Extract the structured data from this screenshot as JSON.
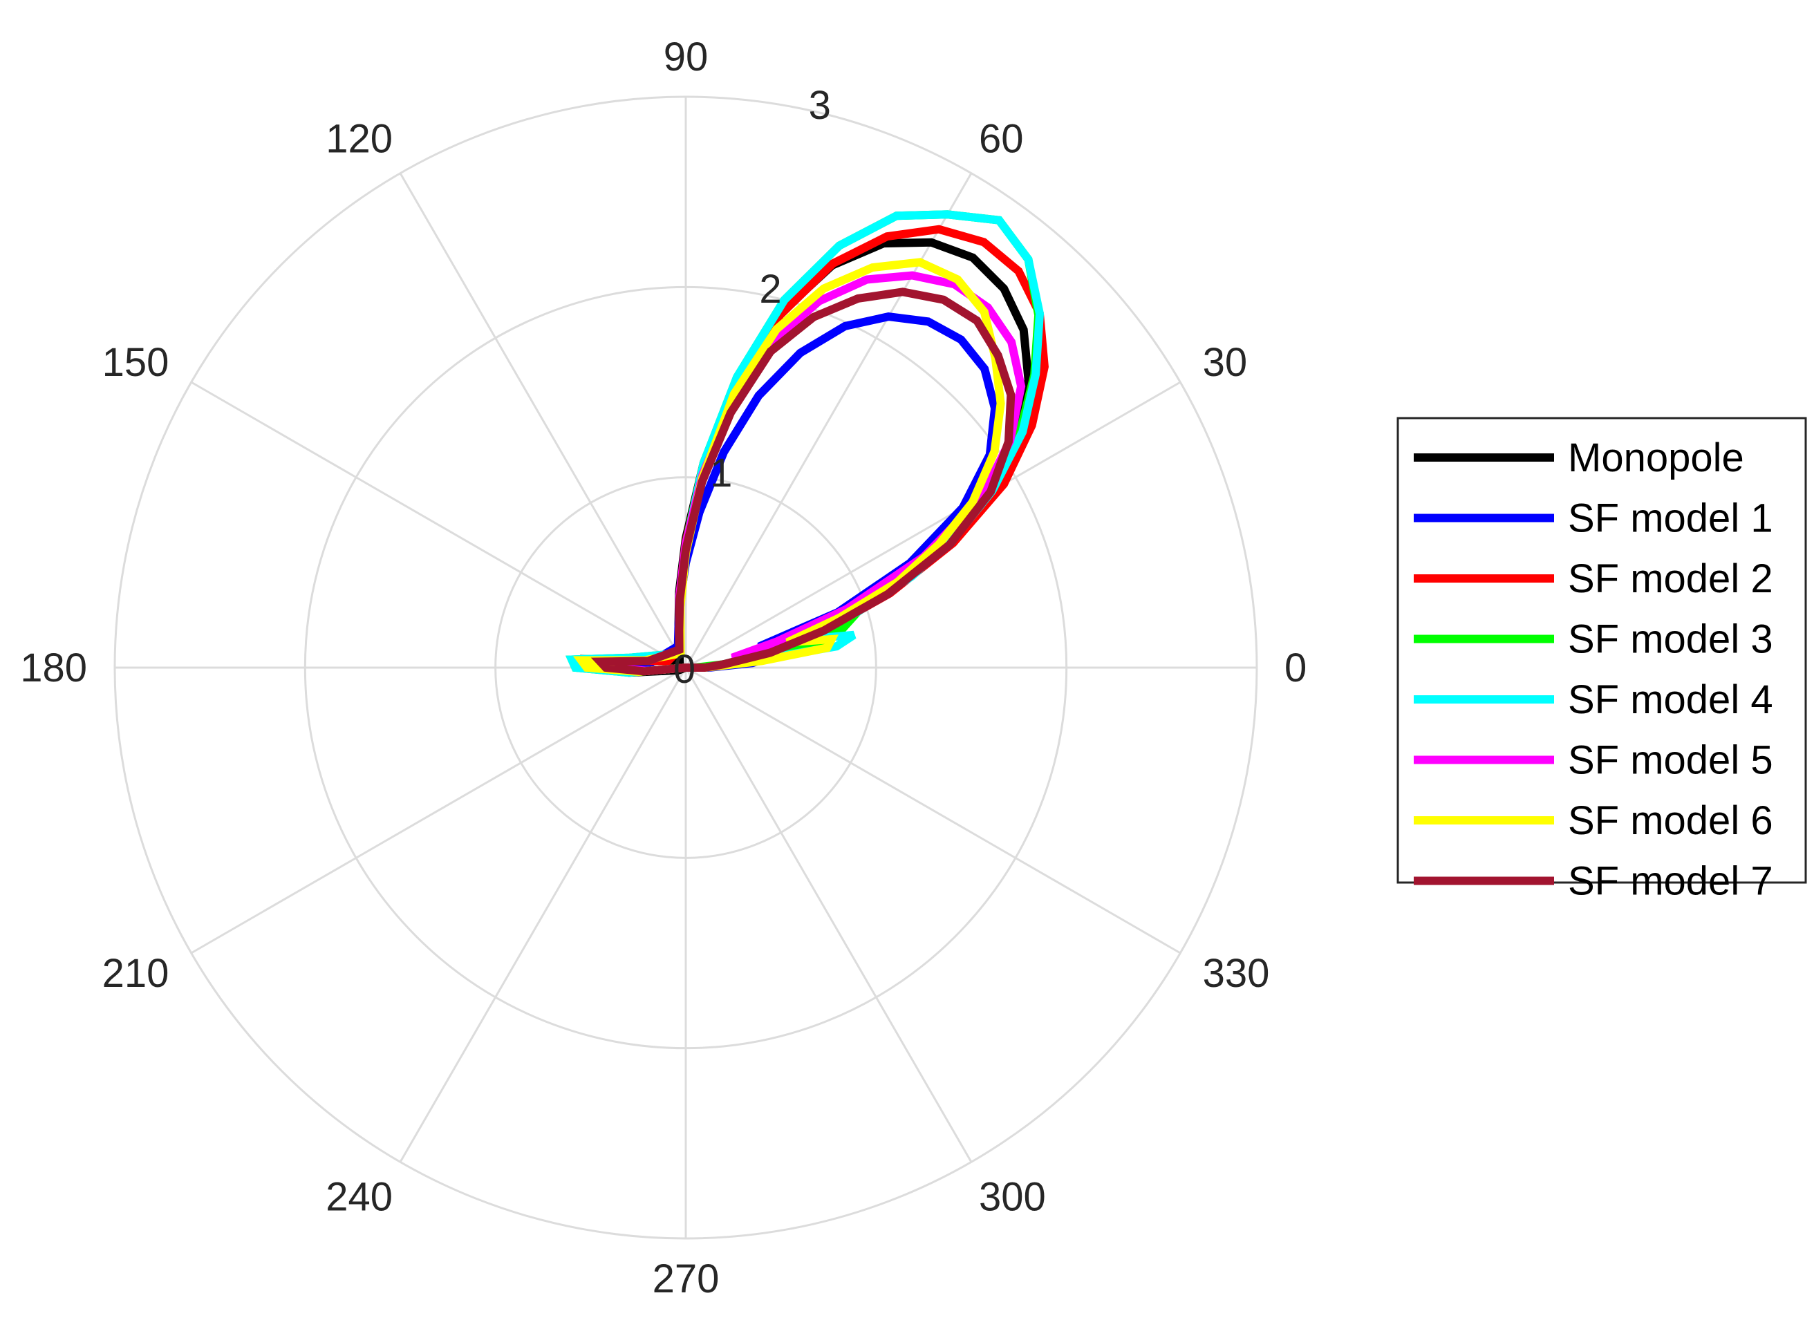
{
  "chart_data": {
    "type": "polar",
    "title": "",
    "theta_unit": "degrees",
    "theta_ticks": [
      0,
      30,
      60,
      90,
      120,
      150,
      180,
      210,
      240,
      270,
      300,
      330
    ],
    "r_ticks": [
      0,
      1,
      2,
      3
    ],
    "rlim": [
      0,
      3
    ],
    "grid": true,
    "legend_position": "right",
    "series": [
      {
        "name": "Monopole",
        "color": "#000000",
        "points": [
          [
            0,
            0.1
          ],
          [
            5,
            0.2
          ],
          [
            10,
            0.42
          ],
          [
            15,
            0.72
          ],
          [
            20,
            1.1
          ],
          [
            25,
            1.5
          ],
          [
            30,
            1.86
          ],
          [
            35,
            2.13
          ],
          [
            40,
            2.35
          ],
          [
            45,
            2.51
          ],
          [
            50,
            2.6
          ],
          [
            55,
            2.63
          ],
          [
            60,
            2.58
          ],
          [
            65,
            2.46
          ],
          [
            70,
            2.25
          ],
          [
            75,
            1.93
          ],
          [
            80,
            1.52
          ],
          [
            85,
            1.08
          ],
          [
            90,
            0.68
          ],
          [
            95,
            0.4
          ],
          [
            100,
            0.22
          ],
          [
            110,
            0.1
          ],
          [
            130,
            0.05
          ],
          [
            160,
            0.1
          ],
          [
            175,
            0.5
          ],
          [
            180,
            0.45
          ],
          [
            185,
            0.3
          ],
          [
            200,
            0.04
          ],
          [
            360,
            0.0
          ]
        ]
      },
      {
        "name": "SF model 1",
        "color": "#0000ff",
        "points": [
          [
            0,
            0.12
          ],
          [
            4,
            0.35
          ],
          [
            8,
            0.48
          ],
          [
            12,
            0.55
          ],
          [
            16,
            0.4
          ],
          [
            20,
            0.85
          ],
          [
            25,
            1.3
          ],
          [
            30,
            1.68
          ],
          [
            35,
            1.95
          ],
          [
            40,
            2.12
          ],
          [
            45,
            2.22
          ],
          [
            50,
            2.25
          ],
          [
            55,
            2.22
          ],
          [
            60,
            2.13
          ],
          [
            65,
            1.98
          ],
          [
            70,
            1.76
          ],
          [
            75,
            1.48
          ],
          [
            80,
            1.15
          ],
          [
            85,
            0.82
          ],
          [
            90,
            0.55
          ],
          [
            95,
            0.35
          ],
          [
            100,
            0.22
          ],
          [
            110,
            0.12
          ],
          [
            170,
            0.18
          ],
          [
            176,
            0.4
          ],
          [
            180,
            0.3
          ],
          [
            185,
            0.15
          ],
          [
            360,
            0.0
          ]
        ]
      },
      {
        "name": "SF model 2",
        "color": "#ff0000",
        "points": [
          [
            0,
            0.1
          ],
          [
            5,
            0.22
          ],
          [
            10,
            0.45
          ],
          [
            15,
            0.75
          ],
          [
            20,
            1.14
          ],
          [
            25,
            1.55
          ],
          [
            30,
            1.93
          ],
          [
            35,
            2.22
          ],
          [
            40,
            2.46
          ],
          [
            45,
            2.63
          ],
          [
            50,
            2.72
          ],
          [
            55,
            2.73
          ],
          [
            60,
            2.66
          ],
          [
            65,
            2.5
          ],
          [
            70,
            2.26
          ],
          [
            75,
            1.92
          ],
          [
            80,
            1.5
          ],
          [
            85,
            1.06
          ],
          [
            90,
            0.66
          ],
          [
            95,
            0.38
          ],
          [
            100,
            0.2
          ],
          [
            110,
            0.1
          ],
          [
            160,
            0.1
          ],
          [
            175,
            0.45
          ],
          [
            180,
            0.4
          ],
          [
            185,
            0.25
          ],
          [
            360,
            0.0
          ]
        ]
      },
      {
        "name": "SF model 3",
        "color": "#00ff00",
        "points": [
          [
            0,
            0.05
          ],
          [
            5,
            0.2
          ],
          [
            10,
            0.7
          ],
          [
            14,
            0.85
          ],
          [
            18,
            0.95
          ],
          [
            22,
            1.25
          ],
          [
            26,
            1.55
          ],
          [
            30,
            1.85
          ],
          [
            35,
            2.14
          ],
          [
            40,
            2.39
          ],
          [
            45,
            2.62
          ],
          [
            50,
            2.8
          ],
          [
            55,
            2.87
          ],
          [
            60,
            2.75
          ],
          [
            65,
            2.62
          ],
          [
            70,
            2.36
          ],
          [
            75,
            2.0
          ],
          [
            80,
            1.55
          ],
          [
            85,
            1.08
          ],
          [
            90,
            0.65
          ],
          [
            95,
            0.35
          ],
          [
            100,
            0.17
          ],
          [
            110,
            0.08
          ],
          [
            170,
            0.3
          ],
          [
            176,
            0.6
          ],
          [
            180,
            0.58
          ],
          [
            185,
            0.3
          ],
          [
            360,
            0.0
          ]
        ]
      },
      {
        "name": "SF model 4",
        "color": "#00ffff",
        "points": [
          [
            0,
            0.1
          ],
          [
            5,
            0.3
          ],
          [
            8,
            0.8
          ],
          [
            11,
            0.9
          ],
          [
            14,
            0.6
          ],
          [
            18,
            0.95
          ],
          [
            22,
            1.28
          ],
          [
            26,
            1.58
          ],
          [
            30,
            1.86
          ],
          [
            35,
            2.16
          ],
          [
            40,
            2.4
          ],
          [
            45,
            2.63
          ],
          [
            50,
            2.8
          ],
          [
            55,
            2.87
          ],
          [
            60,
            2.75
          ],
          [
            65,
            2.62
          ],
          [
            70,
            2.36
          ],
          [
            75,
            2.0
          ],
          [
            80,
            1.55
          ],
          [
            85,
            1.08
          ],
          [
            90,
            0.64
          ],
          [
            95,
            0.35
          ],
          [
            100,
            0.17
          ],
          [
            110,
            0.08
          ],
          [
            170,
            0.3
          ],
          [
            176,
            0.6
          ],
          [
            180,
            0.58
          ],
          [
            185,
            0.3
          ],
          [
            360,
            0.0
          ]
        ]
      },
      {
        "name": "SF model 5",
        "color": "#ff00ff",
        "points": [
          [
            0,
            0.1
          ],
          [
            5,
            0.35
          ],
          [
            8,
            0.4
          ],
          [
            12,
            0.25
          ],
          [
            16,
            0.5
          ],
          [
            20,
            0.9
          ],
          [
            25,
            1.38
          ],
          [
            30,
            1.8
          ],
          [
            35,
            2.08
          ],
          [
            40,
            2.3
          ],
          [
            45,
            2.42
          ],
          [
            50,
            2.47
          ],
          [
            55,
            2.46
          ],
          [
            60,
            2.38
          ],
          [
            65,
            2.25
          ],
          [
            70,
            2.05
          ],
          [
            75,
            1.78
          ],
          [
            80,
            1.4
          ],
          [
            85,
            1.02
          ],
          [
            90,
            0.65
          ],
          [
            95,
            0.38
          ],
          [
            100,
            0.2
          ],
          [
            110,
            0.1
          ],
          [
            170,
            0.2
          ],
          [
            176,
            0.45
          ],
          [
            180,
            0.4
          ],
          [
            185,
            0.2
          ],
          [
            360,
            0.0
          ]
        ]
      },
      {
        "name": "SF model 6",
        "color": "#ffff00",
        "points": [
          [
            0,
            0.1
          ],
          [
            5,
            0.4
          ],
          [
            8,
            0.75
          ],
          [
            11,
            0.78
          ],
          [
            14,
            0.55
          ],
          [
            18,
            0.85
          ],
          [
            22,
            1.2
          ],
          [
            26,
            1.48
          ],
          [
            30,
            1.74
          ],
          [
            35,
            1.98
          ],
          [
            40,
            2.16
          ],
          [
            45,
            2.3
          ],
          [
            50,
            2.44
          ],
          [
            55,
            2.49
          ],
          [
            60,
            2.46
          ],
          [
            65,
            2.32
          ],
          [
            70,
            2.12
          ],
          [
            75,
            1.84
          ],
          [
            80,
            1.46
          ],
          [
            85,
            1.0
          ],
          [
            90,
            0.6
          ],
          [
            95,
            0.32
          ],
          [
            100,
            0.16
          ],
          [
            110,
            0.08
          ],
          [
            170,
            0.22
          ],
          [
            176,
            0.55
          ],
          [
            180,
            0.52
          ],
          [
            185,
            0.25
          ],
          [
            360,
            0.0
          ]
        ]
      },
      {
        "name": "SF model 7",
        "color": "#a2142f",
        "points": [
          [
            0,
            0.1
          ],
          [
            5,
            0.2
          ],
          [
            10,
            0.45
          ],
          [
            15,
            0.75
          ],
          [
            20,
            1.13
          ],
          [
            25,
            1.53
          ],
          [
            30,
            1.85
          ],
          [
            35,
            2.07
          ],
          [
            40,
            2.23
          ],
          [
            45,
            2.32
          ],
          [
            50,
            2.38
          ],
          [
            55,
            2.36
          ],
          [
            60,
            2.28
          ],
          [
            65,
            2.14
          ],
          [
            70,
            1.96
          ],
          [
            75,
            1.72
          ],
          [
            80,
            1.36
          ],
          [
            85,
            0.98
          ],
          [
            90,
            0.62
          ],
          [
            95,
            0.36
          ],
          [
            100,
            0.2
          ],
          [
            110,
            0.1
          ],
          [
            170,
            0.2
          ],
          [
            176,
            0.45
          ],
          [
            180,
            0.42
          ],
          [
            185,
            0.22
          ],
          [
            360,
            0.0
          ]
        ]
      }
    ]
  }
}
